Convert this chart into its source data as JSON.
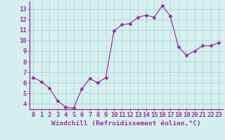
{
  "x": [
    0,
    1,
    2,
    3,
    4,
    5,
    6,
    7,
    8,
    9,
    10,
    11,
    12,
    13,
    14,
    15,
    16,
    17,
    18,
    19,
    20,
    21,
    22,
    23
  ],
  "y": [
    6.5,
    6.1,
    5.5,
    4.3,
    3.7,
    3.6,
    5.4,
    6.4,
    6.0,
    6.5,
    10.9,
    11.5,
    11.6,
    12.2,
    12.4,
    12.2,
    13.3,
    12.3,
    9.4,
    8.6,
    9.0,
    9.5,
    9.5,
    9.8
  ],
  "line_color": "#993399",
  "marker": "D",
  "marker_size": 2.5,
  "bg_color": "#d5efef",
  "grid_color": "#aad4d4",
  "xlabel": "Windchill (Refroidissement éolien,°C)",
  "xlabel_color": "#993399",
  "tick_color": "#993399",
  "axis_line_color": "#993399",
  "xlim": [
    -0.5,
    23.5
  ],
  "ylim": [
    3.5,
    13.7
  ],
  "yticks": [
    4,
    5,
    6,
    7,
    8,
    9,
    10,
    11,
    12,
    13
  ],
  "xticks": [
    0,
    1,
    2,
    3,
    4,
    5,
    6,
    7,
    8,
    9,
    10,
    11,
    12,
    13,
    14,
    15,
    16,
    17,
    18,
    19,
    20,
    21,
    22,
    23
  ],
  "font_size": 6.5,
  "label_font_size": 6.8
}
